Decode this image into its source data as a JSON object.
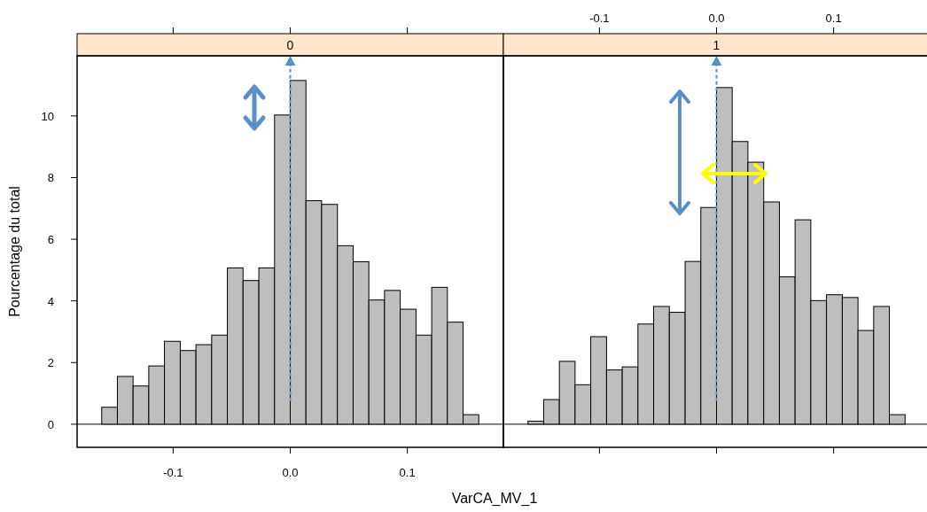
{
  "chart_data": [
    {
      "type": "histogram",
      "title": "0",
      "xlabel": "VarCA_MV_1",
      "ylabel": "Pourcentage du total",
      "color": "#bebebe",
      "bins": [
        -0.161,
        -0.1476,
        -0.1342,
        -0.1208,
        -0.1074,
        -0.0939,
        -0.0805,
        -0.0671,
        -0.0537,
        -0.0403,
        -0.0268,
        -0.0134,
        0,
        0.0134,
        0.0268,
        0.0403,
        0.0537,
        0.0671,
        0.0805,
        0.0939,
        0.1074,
        0.1208,
        0.1342,
        0.1476,
        0.161
      ],
      "values": [
        0.55,
        1.55,
        1.24,
        1.89,
        2.69,
        2.39,
        2.58,
        2.89,
        5.07,
        4.66,
        5.07,
        10.03,
        11.15,
        7.25,
        7.13,
        5.79,
        5.27,
        4.03,
        4.34,
        3.73,
        2.89,
        4.44,
        3.31,
        0.31
      ],
      "xlim": [
        -0.182,
        0.182
      ],
      "xticks": [
        {
          "value": -0.1,
          "label": "-0.1"
        },
        {
          "value": 0,
          "label": "0.0"
        },
        {
          "value": 0.1,
          "label": "0.1"
        }
      ],
      "ylim": [
        -0.75,
        11.95
      ],
      "yticks": [
        0,
        2,
        4,
        6,
        8,
        10
      ],
      "ref_lines": [
        {
          "axis": "x",
          "value": 0,
          "color": "#5b8fc9",
          "line_style": "dashed"
        }
      ]
    },
    {
      "type": "histogram",
      "title": "1",
      "color": "#bebebe",
      "bins": [
        -0.161,
        -0.1476,
        -0.1342,
        -0.1208,
        -0.1074,
        -0.0939,
        -0.0805,
        -0.0671,
        -0.0537,
        -0.0403,
        -0.0268,
        -0.0134,
        0,
        0.0134,
        0.0268,
        0.0403,
        0.0537,
        0.0671,
        0.0805,
        0.0939,
        0.1074,
        0.1208,
        0.1342,
        0.1476,
        0.161
      ],
      "values": [
        0.1,
        0.8,
        2.04,
        1.28,
        2.84,
        1.76,
        1.86,
        3.25,
        3.82,
        3.63,
        5.28,
        7.03,
        10.92,
        9.17,
        8.5,
        7.21,
        4.78,
        6.63,
        4.01,
        4.2,
        4.11,
        3.04,
        3.82,
        0.31
      ],
      "xlim": [
        -0.182,
        0.182
      ],
      "xticks": [
        {
          "value": -0.1,
          "label": "-0.1"
        },
        {
          "value": 0,
          "label": "0.0"
        },
        {
          "value": 0.1,
          "label": "0.1"
        }
      ],
      "ylim": [
        -0.75,
        11.95
      ],
      "tick_labels": "x",
      "ref_lines": [
        {
          "axis": "x",
          "value": 0,
          "color": "#5b8fc9",
          "line_style": "dashed"
        }
      ]
    }
  ]
}
